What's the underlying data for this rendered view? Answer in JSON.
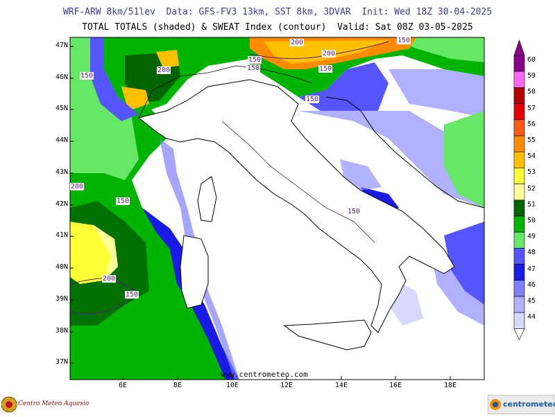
{
  "header": {
    "line1": "WRF-ARW 8km/51lev  Data: GFS-FV3 13km, SST 8km, 3DVAR  Init: Wed 18Z 30-04-2025",
    "line2": "TOTAL TOTALS (shaded) & SWEAT Index (contour)  Valid: Sat 08Z 03-05-2025"
  },
  "axes": {
    "lat_labels": [
      "47N",
      "46N",
      "45N",
      "44N",
      "43N",
      "42N",
      "41N",
      "40N",
      "39N",
      "38N",
      "37N"
    ],
    "lon_labels": [
      "6E",
      "8E",
      "10E",
      "12E",
      "14E",
      "16E",
      "18E"
    ]
  },
  "watermark": "www.centrometeo.com",
  "colorbar": {
    "levels": [
      "60",
      "59",
      "58",
      "57",
      "56",
      "55",
      "54",
      "53",
      "52",
      "51",
      "50",
      "49",
      "48",
      "47",
      "46",
      "45",
      "44"
    ],
    "colors": [
      "#8b008b",
      "#ff66ff",
      "#b30000",
      "#e60000",
      "#ff5a1a",
      "#ff8c00",
      "#ffc000",
      "#ffff33",
      "#ffff99",
      "#006400",
      "#00b400",
      "#66e866",
      "#5555ff",
      "#1a1ae6",
      "#8080ff",
      "#b0b0ff",
      "#d8d8ff"
    ]
  },
  "contour_labels": [
    "200",
    "200",
    "150",
    "150",
    "200",
    "150",
    "150",
    "150",
    "150",
    "150",
    "200",
    "150",
    "200",
    "150"
  ],
  "logos": {
    "left_text": "Centro Meteo Aquesio",
    "right_text": "centrometeo"
  }
}
